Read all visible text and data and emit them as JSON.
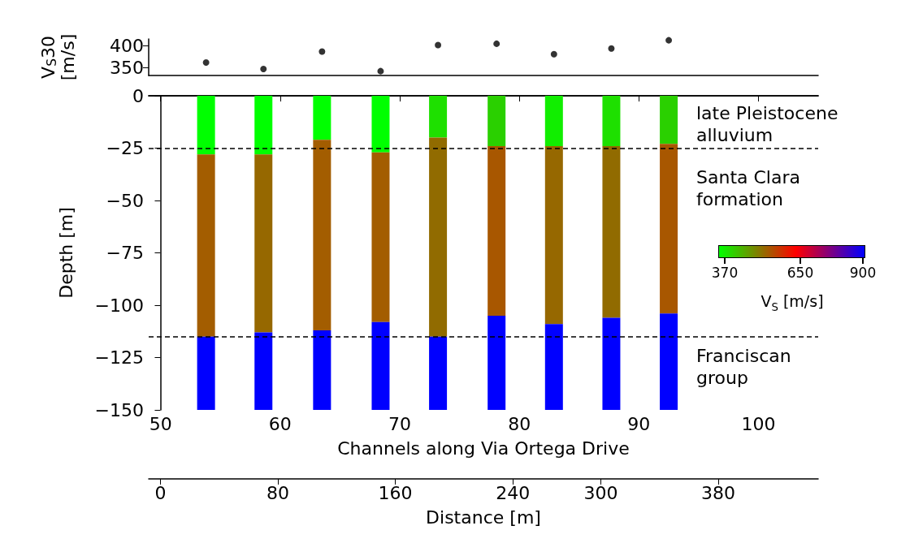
{
  "chart_data": [
    {
      "type": "scatter",
      "ylabel": "V$_{S}$30\n[m/s]",
      "x": [
        53.8,
        58.6,
        63.5,
        68.4,
        73.2,
        78.1,
        82.9,
        87.7,
        92.5
      ],
      "series": [
        {
          "color": "#000000",
          "values": [
            362,
            347,
            387,
            342,
            402,
            405,
            381,
            394,
            413
          ]
        }
      ],
      "xlim": [
        49,
        105
      ],
      "ylim": [
        332,
        416
      ],
      "yticks": [
        350,
        400
      ],
      "marker": "circle",
      "tick_labels": "y"
    },
    {
      "type": "bar",
      "stacked": true,
      "x": [
        53.8,
        58.6,
        63.5,
        68.4,
        73.2,
        78.1,
        82.9,
        87.7,
        92.5
      ],
      "series": [
        {
          "colors": [
            "#00ff00",
            "#00ff00",
            "#00ff00",
            "#00ff00",
            "#1ee000",
            "#2ad000",
            "#11ee00",
            "#1ee000",
            "#2ad000"
          ],
          "values": [
            -28,
            -28,
            -21,
            -27,
            -20,
            -24,
            -24,
            -24,
            -23
          ]
        },
        {
          "colors": [
            "#a35d00",
            "#966800",
            "#a35d00",
            "#a35d00",
            "#916b00",
            "#a85700",
            "#966800",
            "#916b00",
            "#a85700"
          ],
          "values": [
            -87,
            -85,
            -91,
            -81,
            -95,
            -81,
            -85,
            -82,
            -81
          ]
        },
        {
          "colors": [
            "#0000ff",
            "#0000ff",
            "#0000ff",
            "#0000ff",
            "#0000ff",
            "#0000ff",
            "#0000ff",
            "#0000ff",
            "#0000ff"
          ],
          "values": [
            -35,
            -37,
            -38,
            -42,
            -35,
            -45,
            -41,
            -44,
            -46
          ]
        }
      ],
      "xlabel": "Channels along Via Ortega Drive",
      "ylabel": "Depth [m]",
      "x2label": "Distance [m]",
      "xlim": [
        49,
        105
      ],
      "xticks": [
        50,
        60,
        70,
        80,
        90,
        100
      ],
      "ylim": [
        -150,
        0
      ],
      "yticks": [
        -150,
        -125,
        -100,
        -75,
        -50,
        -25,
        0
      ],
      "x2lim": [
        -8,
        448
      ],
      "x2ticks": [
        0,
        80,
        160,
        240,
        300,
        380
      ],
      "ref_lines": [
        {
          "axis": "y",
          "value": -25,
          "color": "#000000",
          "line_style": "dashed"
        },
        {
          "axis": "y",
          "value": -115,
          "color": "#000000",
          "line_style": "dashed"
        }
      ],
      "annotations": [
        "late Pleistocene\nalluvium",
        "Santa Clara\nformation",
        "Franciscan\ngroup"
      ]
    },
    {
      "type": "other",
      "annotations": [
        "370",
        "650",
        "900",
        "V$_{S}$ [m/s]"
      ]
    }
  ]
}
